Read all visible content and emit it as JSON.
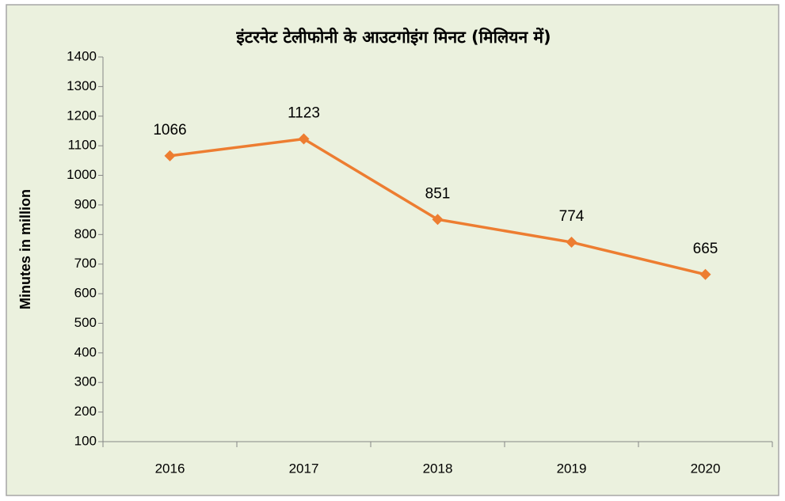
{
  "chart_data": {
    "type": "line",
    "title": "इंटरनेट टेलीफोनी के आउटगोइंग मिनट (मिलियन में)",
    "y_label": "Minutes in million",
    "categories": [
      "2016",
      "2017",
      "2018",
      "2019",
      "2020"
    ],
    "series": [
      {
        "name": "Minutes in million",
        "color": "#ed7d31",
        "values": [
          1066,
          1123,
          851,
          774,
          665
        ]
      }
    ],
    "ylim": [
      100,
      1400
    ],
    "yticks": [
      100,
      200,
      300,
      400,
      500,
      600,
      700,
      800,
      900,
      1000,
      1100,
      1200,
      1300,
      1400
    ],
    "data_labels": true
  }
}
